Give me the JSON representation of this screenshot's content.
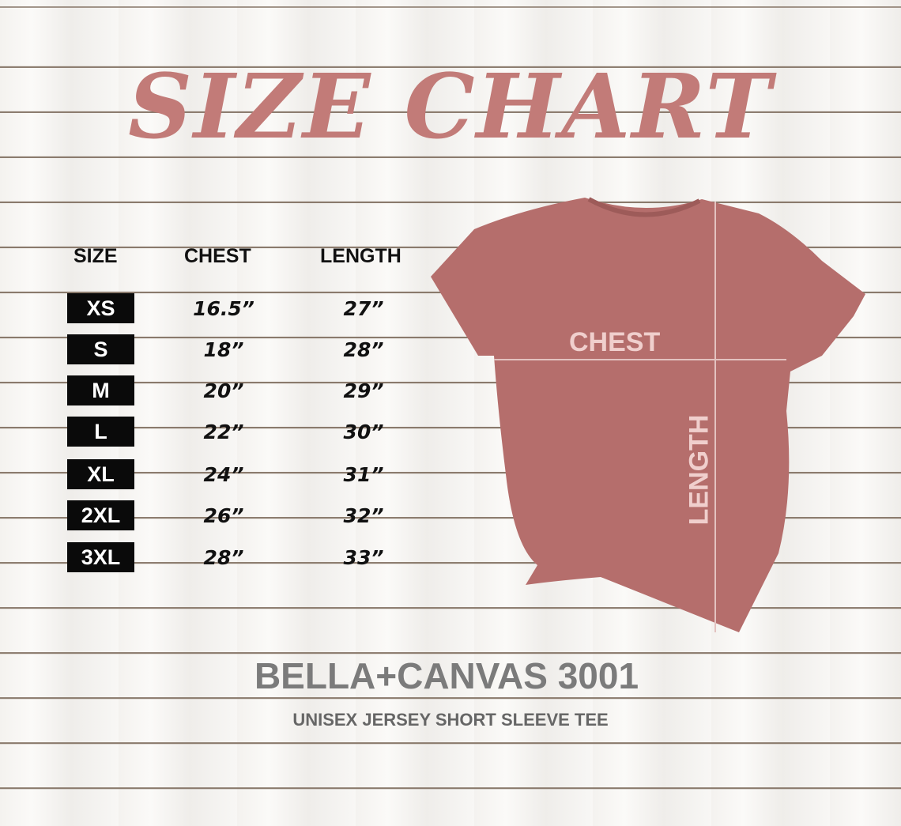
{
  "title": "SIZE CHART",
  "table": {
    "headers": [
      "SIZE",
      "CHEST",
      "LENGTH"
    ],
    "rows": [
      {
        "size": "XS",
        "chest": "16.5”",
        "length": "27”"
      },
      {
        "size": "S",
        "chest": "18”",
        "length": "28”"
      },
      {
        "size": "M",
        "chest": "20”",
        "length": "29”"
      },
      {
        "size": "L",
        "chest": "22”",
        "length": "30”"
      },
      {
        "size": "XL",
        "chest": "24”",
        "length": "31”"
      },
      {
        "size": "2XL",
        "chest": "26”",
        "length": "32”"
      },
      {
        "size": "3XL",
        "chest": "28”",
        "length": "33”"
      }
    ]
  },
  "shirt": {
    "chest_label": "CHEST",
    "length_label": "LENGTH",
    "color": "#b56e6c"
  },
  "brand": "BELLA+CANVAS 3001",
  "subtitle": "UNISEX JERSEY SHORT SLEEVE TEE",
  "colors": {
    "title": "#c27b78",
    "brand": "#7b7b7b"
  }
}
